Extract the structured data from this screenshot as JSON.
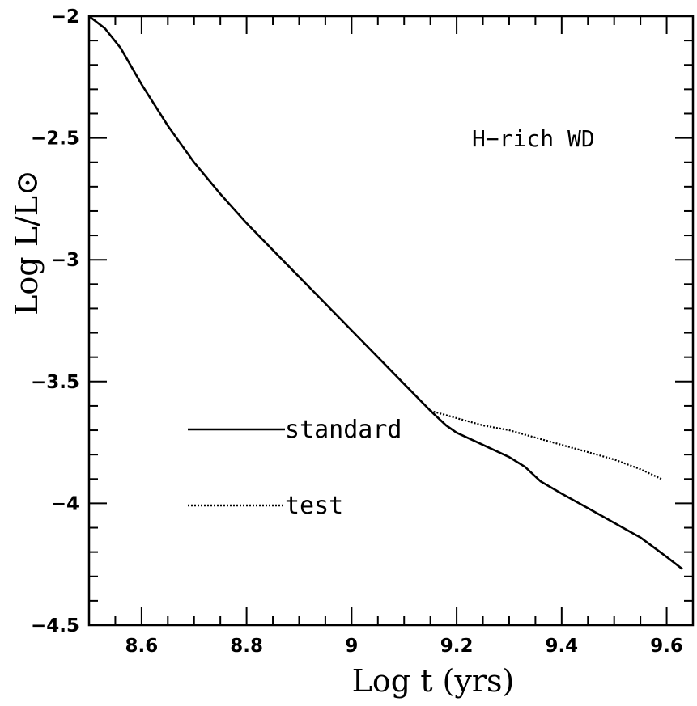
{
  "chart_data": {
    "type": "line",
    "xlabel": "Log t (yrs)",
    "ylabel": "Log L/L⊙",
    "xlim": [
      8.5,
      9.65
    ],
    "ylim": [
      -4.5,
      -2.0
    ],
    "x_ticks": [
      "8.6",
      "8.8",
      "9",
      "9.2",
      "9.4",
      "9.6"
    ],
    "y_ticks": [
      "-2",
      "-2.5",
      "-3",
      "-3.5",
      "-4",
      "-4.5"
    ],
    "annotation": "H−rich WD",
    "grid": false,
    "legend_position": "lower-left",
    "series": [
      {
        "name": "standard",
        "style": "solid",
        "x": [
          8.5,
          8.53,
          8.56,
          8.6,
          8.65,
          8.7,
          8.75,
          8.8,
          8.85,
          8.9,
          8.95,
          9.0,
          9.05,
          9.1,
          9.15,
          9.18,
          9.2,
          9.25,
          9.3,
          9.33,
          9.36,
          9.4,
          9.45,
          9.5,
          9.55,
          9.6,
          9.63
        ],
        "y": [
          -2.0,
          -2.05,
          -2.13,
          -2.28,
          -2.45,
          -2.6,
          -2.73,
          -2.85,
          -2.96,
          -3.07,
          -3.18,
          -3.29,
          -3.4,
          -3.51,
          -3.62,
          -3.68,
          -3.71,
          -3.76,
          -3.81,
          -3.85,
          -3.91,
          -3.96,
          -4.02,
          -4.08,
          -4.14,
          -4.22,
          -4.27
        ]
      },
      {
        "name": "test",
        "style": "dotted",
        "x": [
          9.15,
          9.2,
          9.25,
          9.3,
          9.35,
          9.4,
          9.45,
          9.5,
          9.55,
          9.59
        ],
        "y": [
          -3.62,
          -3.65,
          -3.68,
          -3.7,
          -3.73,
          -3.76,
          -3.79,
          -3.82,
          -3.86,
          -3.9
        ]
      }
    ]
  }
}
